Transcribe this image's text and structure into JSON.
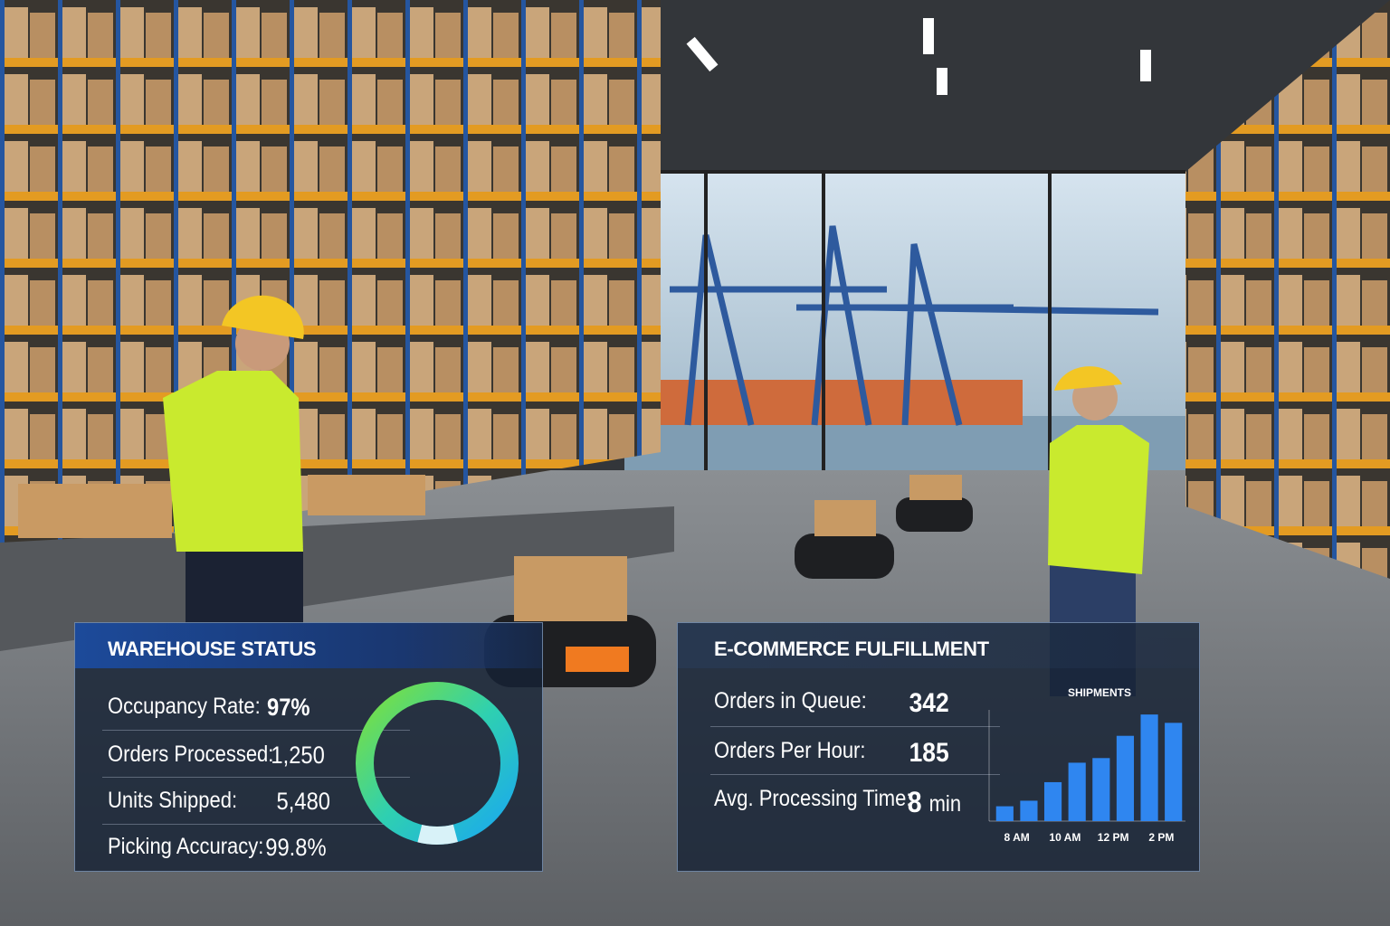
{
  "warehouse_status": {
    "title": "WAREHOUSE STATUS",
    "rows": [
      {
        "label": "Occupancy Rate:",
        "value": "97%"
      },
      {
        "label": "Orders Processed:",
        "value": "1,250"
      },
      {
        "label": "Units Shipped:",
        "value": "5,480"
      },
      {
        "label": "Picking Accuracy:",
        "value": "99.8%"
      }
    ]
  },
  "fulfillment": {
    "title": "E-COMMERCE FULFILLMENT",
    "rows": [
      {
        "label": "Orders in Queue:",
        "value": "342"
      },
      {
        "label": "Orders Per Hour:",
        "value": "185"
      },
      {
        "label": "Avg. Processing Time:",
        "value": "8",
        "unit": "min"
      }
    ]
  },
  "chart_data": {
    "type": "bar",
    "title": "SHIPMENTS",
    "categories": [
      "8 AM",
      null,
      "10 AM",
      null,
      "12 PM",
      null,
      "2 PM",
      null
    ],
    "values": [
      16,
      22,
      42,
      63,
      68,
      92,
      115,
      106
    ],
    "color": "#2f86f0",
    "ylim": [
      0,
      120
    ]
  }
}
